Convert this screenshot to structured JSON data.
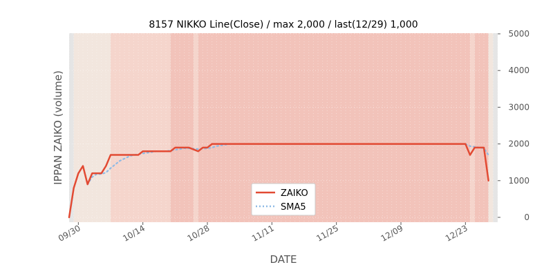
{
  "chart_data": {
    "type": "line",
    "title": "8157 NIKKO Line(Close) / max 2,000 / last(12/29) 1,000",
    "xlabel": "DATE",
    "ylabel": "IPPAN ZAIKO (volume)",
    "ylim": [
      0,
      5000
    ],
    "y_ticks": [
      "0",
      "1000",
      "2000",
      "3000",
      "4000",
      "5000"
    ],
    "y_axis_side": "right",
    "x_range": [
      "09/28",
      "12/30"
    ],
    "x_ticks": [
      {
        "label": "09/30",
        "date": "09/30"
      },
      {
        "label": "10/14",
        "date": "10/14"
      },
      {
        "label": "10/28",
        "date": "10/28"
      },
      {
        "label": "11/11",
        "date": "11/11"
      },
      {
        "label": "11/25",
        "date": "11/25"
      },
      {
        "label": "12/09",
        "date": "12/09"
      },
      {
        "label": "12/23",
        "date": "12/23"
      }
    ],
    "grid": true,
    "legend_position": "lower-center",
    "colors": {
      "zaiko": "#E24A33",
      "sma5": "#8EBAE5",
      "plot_bg": "#E5E5E5",
      "band_light": "#F2E6DE",
      "band_medium": "#F5D5CC",
      "band_strong": "#F2C3BA"
    },
    "background_bands": [
      {
        "start": "09/29",
        "end": "10/07",
        "level": "light"
      },
      {
        "start": "10/07",
        "end": "10/20",
        "level": "medium"
      },
      {
        "start": "10/20",
        "end": "10/25",
        "level": "strong"
      },
      {
        "start": "10/25",
        "end": "10/26",
        "level": "medium"
      },
      {
        "start": "10/26",
        "end": "12/24",
        "level": "strong"
      },
      {
        "start": "12/24",
        "end": "12/25",
        "level": "medium"
      },
      {
        "start": "12/25",
        "end": "12/28",
        "level": "strong"
      },
      {
        "start": "12/28",
        "end": "12/29",
        "level": "light"
      }
    ],
    "series": [
      {
        "name": "ZAIKO",
        "style": "solid",
        "points": [
          [
            "09/28",
            0
          ],
          [
            "09/29",
            800
          ],
          [
            "09/30",
            1200
          ],
          [
            "10/01",
            1400
          ],
          [
            "10/02",
            900
          ],
          [
            "10/03",
            1200
          ],
          [
            "10/04",
            1200
          ],
          [
            "10/05",
            1200
          ],
          [
            "10/06",
            1400
          ],
          [
            "10/07",
            1700
          ],
          [
            "10/08",
            1700
          ],
          [
            "10/09",
            1700
          ],
          [
            "10/10",
            1700
          ],
          [
            "10/11",
            1700
          ],
          [
            "10/12",
            1700
          ],
          [
            "10/13",
            1700
          ],
          [
            "10/14",
            1800
          ],
          [
            "10/15",
            1800
          ],
          [
            "10/16",
            1800
          ],
          [
            "10/17",
            1800
          ],
          [
            "10/18",
            1800
          ],
          [
            "10/19",
            1800
          ],
          [
            "10/20",
            1800
          ],
          [
            "10/21",
            1900
          ],
          [
            "10/22",
            1900
          ],
          [
            "10/23",
            1900
          ],
          [
            "10/24",
            1900
          ],
          [
            "10/25",
            1850
          ],
          [
            "10/26",
            1800
          ],
          [
            "10/27",
            1900
          ],
          [
            "10/28",
            1900
          ],
          [
            "10/29",
            2000
          ],
          [
            "10/30",
            2000
          ],
          [
            "12/22",
            2000
          ],
          [
            "12/23",
            2000
          ],
          [
            "12/24",
            1700
          ],
          [
            "12/25",
            1900
          ],
          [
            "12/26",
            1900
          ],
          [
            "12/27",
            1900
          ],
          [
            "12/28",
            1000
          ]
        ]
      },
      {
        "name": "SMA5",
        "style": "dotted",
        "points": [
          [
            "10/02",
            900
          ],
          [
            "10/03",
            1100
          ],
          [
            "10/04",
            1180
          ],
          [
            "10/05",
            1180
          ],
          [
            "10/06",
            1220
          ],
          [
            "10/07",
            1340
          ],
          [
            "10/08",
            1440
          ],
          [
            "10/09",
            1540
          ],
          [
            "10/10",
            1600
          ],
          [
            "10/11",
            1660
          ],
          [
            "10/12",
            1700
          ],
          [
            "10/13",
            1720
          ],
          [
            "10/14",
            1740
          ],
          [
            "10/15",
            1760
          ],
          [
            "10/16",
            1780
          ],
          [
            "10/17",
            1800
          ],
          [
            "10/18",
            1800
          ],
          [
            "10/19",
            1800
          ],
          [
            "10/20",
            1820
          ],
          [
            "10/21",
            1840
          ],
          [
            "10/22",
            1860
          ],
          [
            "10/23",
            1880
          ],
          [
            "10/24",
            1880
          ],
          [
            "10/25",
            1870
          ],
          [
            "10/26",
            1860
          ],
          [
            "10/27",
            1870
          ],
          [
            "10/28",
            1880
          ],
          [
            "10/29",
            1900
          ],
          [
            "10/30",
            1940
          ],
          [
            "10/31",
            1960
          ],
          [
            "11/01",
            1980
          ],
          [
            "11/02",
            2000
          ],
          [
            "12/22",
            2000
          ],
          [
            "12/23",
            2000
          ],
          [
            "12/24",
            1940
          ],
          [
            "12/25",
            1920
          ],
          [
            "12/26",
            1900
          ],
          [
            "12/27",
            1880
          ],
          [
            "12/28",
            1700
          ]
        ]
      }
    ]
  }
}
